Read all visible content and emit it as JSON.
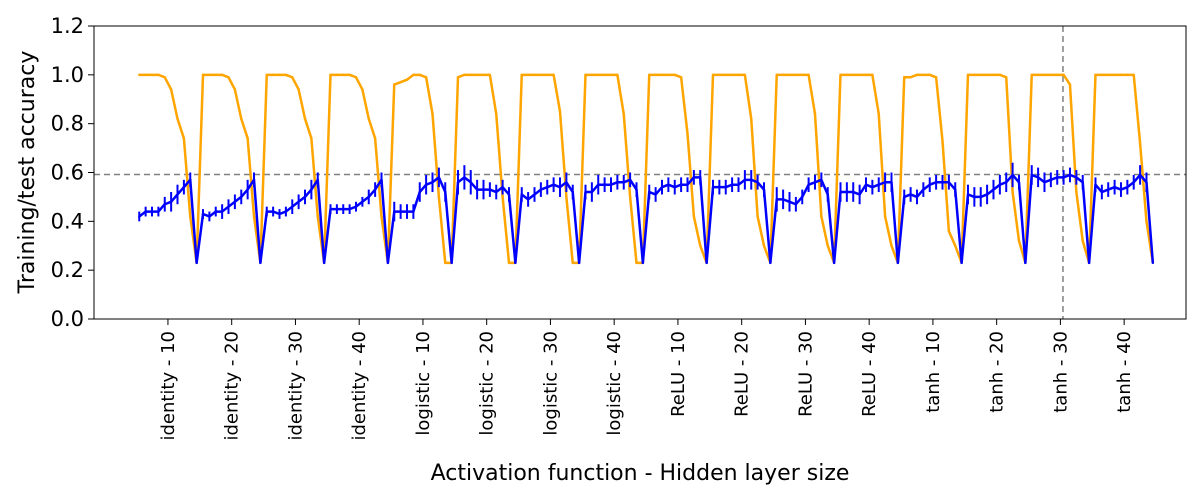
{
  "chart_data": {
    "type": "line",
    "xlabel": "Activation function - Hidden layer size",
    "ylabel": "Training/test accuracy",
    "ylim": [
      0.0,
      1.2
    ],
    "yticks": [
      0.0,
      0.2,
      0.4,
      0.6,
      0.8,
      1.0,
      1.2
    ],
    "ytick_labels": [
      "0.0",
      "0.2",
      "0.4",
      "0.6",
      "0.8",
      "1.0",
      "1.2"
    ],
    "xlim": [
      -7.1,
      164.2
    ],
    "categories": [
      "identity - 10",
      "identity - 20",
      "identity - 30",
      "identity - 40",
      "logistic - 10",
      "logistic - 20",
      "logistic - 30",
      "logistic - 40",
      "ReLU - 10",
      "ReLU - 20",
      "ReLU - 30",
      "ReLU - 40",
      "tanh - 10",
      "tanh - 20",
      "tanh - 30",
      "tanh - 40"
    ],
    "category_tick_positions": [
      4.5,
      14.5,
      24.5,
      34.5,
      44.5,
      54.5,
      64.5,
      74.5,
      84.5,
      94.5,
      104.5,
      114.5,
      124.5,
      134.5,
      144.5,
      154.5
    ],
    "points_per_group": 10,
    "hline": {
      "y": 0.592,
      "style": "dashed",
      "color": "#808080"
    },
    "vline": {
      "x": 144.9,
      "style": "dashed",
      "color": "#808080"
    },
    "series": [
      {
        "name": "Training accuracy",
        "color": "#FFA500",
        "values": [
          [
            1.0,
            1.0,
            1.0,
            1.0,
            0.99,
            0.94,
            0.82,
            0.74,
            0.42,
            0.23
          ],
          [
            1.0,
            1.0,
            1.0,
            1.0,
            0.99,
            0.94,
            0.82,
            0.74,
            0.42,
            0.23
          ],
          [
            1.0,
            1.0,
            1.0,
            1.0,
            0.99,
            0.94,
            0.82,
            0.74,
            0.42,
            0.23
          ],
          [
            1.0,
            1.0,
            1.0,
            1.0,
            0.99,
            0.94,
            0.82,
            0.74,
            0.42,
            0.23
          ],
          [
            0.96,
            0.97,
            0.98,
            1.0,
            1.0,
            0.99,
            0.84,
            0.5,
            0.23,
            0.23
          ],
          [
            0.99,
            1.0,
            1.0,
            1.0,
            1.0,
            1.0,
            0.84,
            0.5,
            0.23,
            0.23
          ],
          [
            1.0,
            1.0,
            1.0,
            1.0,
            1.0,
            1.0,
            0.85,
            0.5,
            0.23,
            0.23
          ],
          [
            1.0,
            1.0,
            1.0,
            1.0,
            1.0,
            1.0,
            0.84,
            0.5,
            0.23,
            0.23
          ],
          [
            1.0,
            1.0,
            1.0,
            1.0,
            1.0,
            0.99,
            0.76,
            0.42,
            0.3,
            0.23
          ],
          [
            1.0,
            1.0,
            1.0,
            1.0,
            1.0,
            1.0,
            0.82,
            0.42,
            0.3,
            0.23
          ],
          [
            1.0,
            1.0,
            1.0,
            1.0,
            1.0,
            1.0,
            0.84,
            0.42,
            0.3,
            0.23
          ],
          [
            1.0,
            1.0,
            1.0,
            1.0,
            1.0,
            1.0,
            0.84,
            0.42,
            0.3,
            0.23
          ],
          [
            0.99,
            0.99,
            1.0,
            1.0,
            1.0,
            0.99,
            0.73,
            0.36,
            0.3,
            0.23
          ],
          [
            1.0,
            1.0,
            1.0,
            1.0,
            1.0,
            1.0,
            0.99,
            0.52,
            0.32,
            0.23
          ],
          [
            1.0,
            1.0,
            1.0,
            1.0,
            1.0,
            1.0,
            0.96,
            0.52,
            0.32,
            0.23
          ],
          [
            1.0,
            1.0,
            1.0,
            1.0,
            1.0,
            1.0,
            1.0,
            0.72,
            0.4,
            0.23
          ]
        ]
      },
      {
        "name": "Test accuracy",
        "color": "#0000FF",
        "values": [
          [
            0.42,
            0.44,
            0.44,
            0.44,
            0.47,
            0.48,
            0.51,
            0.54,
            0.57,
            0.23
          ],
          [
            0.43,
            0.42,
            0.44,
            0.44,
            0.46,
            0.48,
            0.5,
            0.53,
            0.57,
            0.23
          ],
          [
            0.44,
            0.44,
            0.43,
            0.44,
            0.46,
            0.48,
            0.5,
            0.53,
            0.57,
            0.23
          ],
          [
            0.45,
            0.45,
            0.45,
            0.45,
            0.46,
            0.48,
            0.5,
            0.53,
            0.57,
            0.23
          ],
          [
            0.44,
            0.44,
            0.44,
            0.44,
            0.52,
            0.55,
            0.56,
            0.58,
            0.52,
            0.23
          ],
          [
            0.56,
            0.58,
            0.56,
            0.53,
            0.53,
            0.53,
            0.52,
            0.54,
            0.51,
            0.23
          ],
          [
            0.51,
            0.49,
            0.51,
            0.53,
            0.54,
            0.55,
            0.54,
            0.56,
            0.52,
            0.23
          ],
          [
            0.52,
            0.52,
            0.55,
            0.55,
            0.55,
            0.56,
            0.56,
            0.57,
            0.53,
            0.23
          ],
          [
            0.52,
            0.51,
            0.54,
            0.55,
            0.54,
            0.55,
            0.55,
            0.58,
            0.58,
            0.23
          ],
          [
            0.54,
            0.54,
            0.54,
            0.55,
            0.55,
            0.57,
            0.57,
            0.56,
            0.53,
            0.23
          ],
          [
            0.49,
            0.49,
            0.48,
            0.47,
            0.5,
            0.55,
            0.56,
            0.57,
            0.51,
            0.23
          ],
          [
            0.52,
            0.52,
            0.52,
            0.51,
            0.55,
            0.54,
            0.55,
            0.56,
            0.56,
            0.23
          ],
          [
            0.5,
            0.51,
            0.5,
            0.53,
            0.55,
            0.56,
            0.56,
            0.56,
            0.53,
            0.23
          ],
          [
            0.51,
            0.5,
            0.5,
            0.51,
            0.53,
            0.55,
            0.56,
            0.59,
            0.56,
            0.23
          ],
          [
            0.59,
            0.58,
            0.56,
            0.57,
            0.58,
            0.58,
            0.59,
            0.58,
            0.56,
            0.23
          ],
          [
            0.55,
            0.52,
            0.53,
            0.54,
            0.53,
            0.54,
            0.56,
            0.59,
            0.56,
            0.23
          ]
        ],
        "error": [
          [
            0.02,
            0.02,
            0.02,
            0.02,
            0.03,
            0.04,
            0.04,
            0.03,
            0.03,
            0.0
          ],
          [
            0.02,
            0.02,
            0.02,
            0.03,
            0.03,
            0.03,
            0.03,
            0.04,
            0.03,
            0.0
          ],
          [
            0.02,
            0.02,
            0.02,
            0.02,
            0.03,
            0.03,
            0.03,
            0.04,
            0.03,
            0.0
          ],
          [
            0.02,
            0.02,
            0.02,
            0.02,
            0.02,
            0.02,
            0.03,
            0.03,
            0.03,
            0.0
          ],
          [
            0.04,
            0.03,
            0.03,
            0.03,
            0.04,
            0.04,
            0.04,
            0.04,
            0.04,
            0.0
          ],
          [
            0.05,
            0.05,
            0.05,
            0.04,
            0.04,
            0.03,
            0.03,
            0.03,
            0.03,
            0.0
          ],
          [
            0.03,
            0.03,
            0.03,
            0.03,
            0.03,
            0.03,
            0.04,
            0.04,
            0.03,
            0.0
          ],
          [
            0.03,
            0.04,
            0.04,
            0.03,
            0.03,
            0.03,
            0.03,
            0.03,
            0.03,
            0.0
          ],
          [
            0.03,
            0.03,
            0.03,
            0.03,
            0.03,
            0.03,
            0.03,
            0.03,
            0.03,
            0.0
          ],
          [
            0.03,
            0.03,
            0.03,
            0.03,
            0.03,
            0.04,
            0.04,
            0.03,
            0.03,
            0.0
          ],
          [
            0.05,
            0.04,
            0.04,
            0.03,
            0.03,
            0.03,
            0.03,
            0.03,
            0.03,
            0.0
          ],
          [
            0.04,
            0.04,
            0.04,
            0.04,
            0.03,
            0.03,
            0.03,
            0.04,
            0.04,
            0.0
          ],
          [
            0.03,
            0.03,
            0.03,
            0.03,
            0.03,
            0.03,
            0.03,
            0.03,
            0.03,
            0.0
          ],
          [
            0.04,
            0.04,
            0.04,
            0.04,
            0.04,
            0.04,
            0.04,
            0.05,
            0.03,
            0.0
          ],
          [
            0.04,
            0.04,
            0.04,
            0.03,
            0.03,
            0.03,
            0.03,
            0.03,
            0.03,
            0.0
          ],
          [
            0.03,
            0.03,
            0.03,
            0.03,
            0.03,
            0.03,
            0.03,
            0.04,
            0.04,
            0.0
          ]
        ]
      }
    ]
  }
}
